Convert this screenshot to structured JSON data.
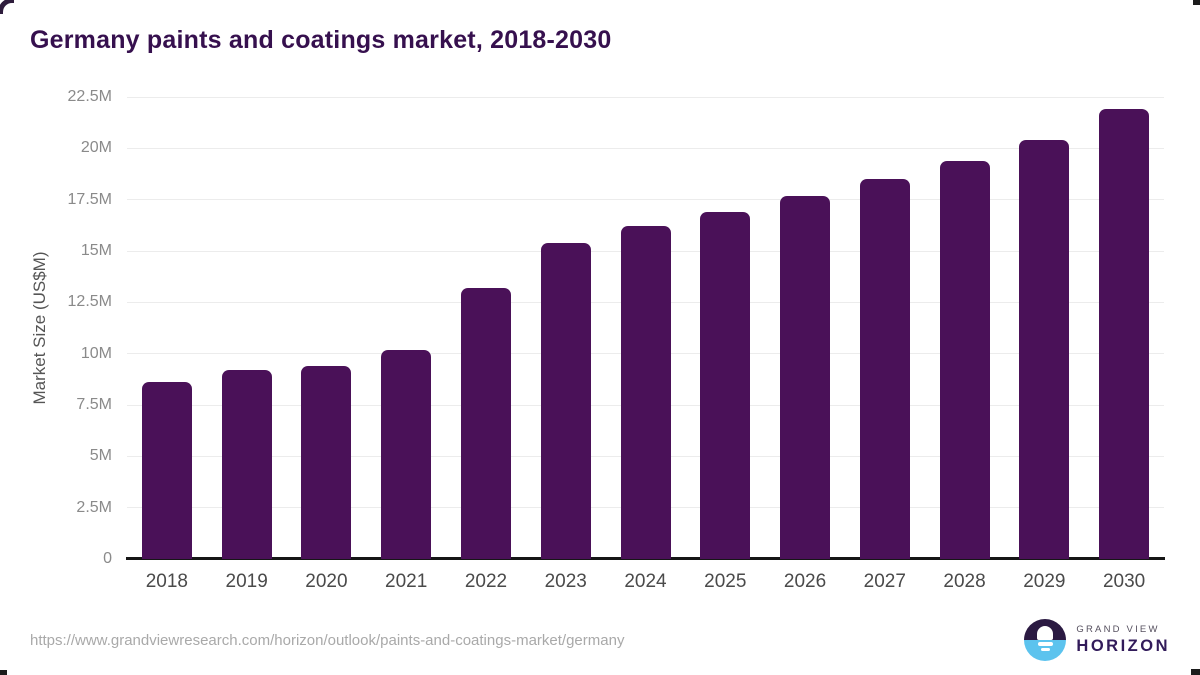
{
  "title": "Germany paints and coatings market, 2018-2030",
  "chart_data": {
    "type": "bar",
    "title": "Germany paints and coatings market, 2018-2030",
    "categories": [
      "2018",
      "2019",
      "2020",
      "2021",
      "2022",
      "2023",
      "2024",
      "2025",
      "2026",
      "2027",
      "2028",
      "2029",
      "2030"
    ],
    "values": [
      8.6,
      9.2,
      9.4,
      10.2,
      13.2,
      15.4,
      16.2,
      16.9,
      17.7,
      18.5,
      19.4,
      20.4,
      21.9
    ],
    "xlabel": "",
    "ylabel": "Market Size (US$M)",
    "ylim": [
      0,
      22.5
    ],
    "yticks": [
      0,
      2.5,
      5,
      7.5,
      10,
      12.5,
      15,
      17.5,
      20,
      22.5
    ],
    "ytick_labels": [
      "0",
      "2.5M",
      "5M",
      "7.5M",
      "10M",
      "12.5M",
      "15M",
      "17.5M",
      "20M",
      "22.5M"
    ],
    "grid": "horizontal-only",
    "legend": "none",
    "bar_color": "#4a1158"
  },
  "colors": {
    "title": "#36104e",
    "bar": "#4a1158",
    "axis_line": "#161616",
    "gridline": "#ececec",
    "ytick_label": "#8a8a8a",
    "xtick_label": "#4a4a4a",
    "axis_title": "#555555",
    "url_text": "#a9a9a9",
    "logo_dark": "#2b1a42",
    "logo_blue": "#5cc3ee",
    "logo_grand_view_text": "#56505f",
    "logo_horizon_text": "#321b5a"
  },
  "footer": {
    "source_url": "https://www.grandviewresearch.com/horizon/outlook/paints-and-coatings-market/germany",
    "logo": {
      "line1": "GRAND VIEW",
      "line2": "HORIZON"
    }
  }
}
